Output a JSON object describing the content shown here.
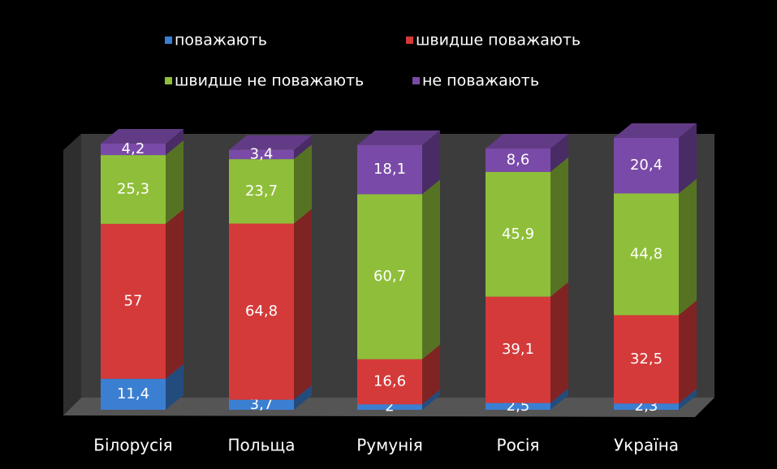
{
  "chart_data": {
    "type": "bar",
    "stacked": true,
    "categories": [
      "Білорусія",
      "Польща",
      "Румунія",
      "Росія",
      "Україна"
    ],
    "series": [
      {
        "name": "поважають",
        "color": "#3b7fd2",
        "values": [
          11.4,
          3.7,
          2,
          2.5,
          2.3
        ],
        "value_labels": [
          "11,4",
          "3,7",
          "2",
          "2,5",
          "2,3"
        ]
      },
      {
        "name": "швидше поважають",
        "color": "#d53a3a",
        "values": [
          57,
          64.8,
          16.6,
          39.1,
          32.5
        ],
        "value_labels": [
          "57",
          "64,8",
          "16,6",
          "39,1",
          "32,5"
        ]
      },
      {
        "name": "швидше не поважають",
        "color": "#8fbf3a",
        "values": [
          25.3,
          23.7,
          60.7,
          45.9,
          44.8
        ],
        "value_labels": [
          "25,3",
          "23,7",
          "60,7",
          "45,9",
          "44,8"
        ]
      },
      {
        "name": "не поважають",
        "color": "#7a4aa8",
        "values": [
          4.2,
          3.4,
          18.1,
          8.6,
          20.4
        ],
        "value_labels": [
          "4,2",
          "3,4",
          "18,1",
          "8,6",
          "20,4"
        ]
      }
    ]
  }
}
